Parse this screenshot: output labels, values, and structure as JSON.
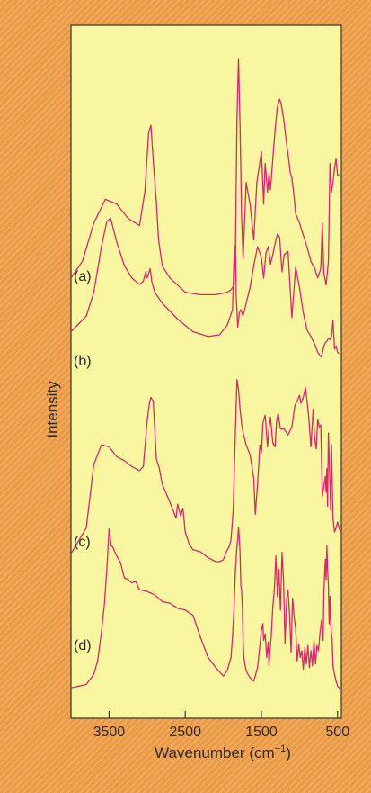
{
  "chart_data": {
    "type": "line",
    "title": "",
    "xlabel": "Wavenumber (cm",
    "xlabel_superscript": "−1",
    "xlabel_suffix": ")",
    "ylabel": "Intensity",
    "x_reversed": true,
    "xlim": [
      4000,
      450
    ],
    "x_ticks": [
      3500,
      2500,
      1500,
      500
    ],
    "x_tick_labels": [
      "3500",
      "2500",
      "1500",
      "500"
    ],
    "y_ticks_shown": false,
    "grid": false,
    "legend": "none",
    "colors": {
      "line": "#d9276b",
      "plot_bg": "#f8f6a0",
      "frame": "#333333",
      "page_bg": "#f2a04a"
    },
    "series": [
      {
        "name": "(a)",
        "x": [
          4000,
          3850,
          3700,
          3550,
          3400,
          3250,
          3100,
          3030,
          2980,
          2950,
          2920,
          2880,
          2850,
          2800,
          2700,
          2500,
          2300,
          2100,
          1950,
          1900,
          1860,
          1840,
          1820,
          1800,
          1780,
          1760,
          1740,
          1700,
          1650,
          1600,
          1560,
          1500,
          1470,
          1450,
          1420,
          1400,
          1380,
          1350,
          1320,
          1290,
          1260,
          1240,
          1220,
          1200,
          1180,
          1150,
          1120,
          1100,
          1070,
          1050,
          1000,
          950,
          900,
          850,
          800,
          760,
          720,
          700,
          680,
          650,
          620,
          600,
          580,
          560,
          540,
          520,
          500,
          480
        ],
        "y": [
          0.08,
          0.15,
          0.31,
          0.41,
          0.39,
          0.33,
          0.3,
          0.44,
          0.69,
          0.72,
          0.57,
          0.4,
          0.24,
          0.13,
          0.08,
          0.02,
          0.01,
          0.01,
          0.02,
          0.03,
          0.05,
          0.2,
          0.75,
          1.0,
          0.72,
          0.34,
          0.16,
          0.48,
          0.39,
          0.24,
          0.48,
          0.61,
          0.39,
          0.56,
          0.44,
          0.52,
          0.45,
          0.58,
          0.7,
          0.8,
          0.83,
          0.81,
          0.77,
          0.73,
          0.67,
          0.6,
          0.52,
          0.5,
          0.42,
          0.35,
          0.31,
          0.26,
          0.21,
          0.15,
          0.12,
          0.08,
          0.12,
          0.31,
          0.1,
          0.05,
          0.15,
          0.56,
          0.44,
          0.48,
          0.54,
          0.58,
          0.51,
          0.51
        ]
      },
      {
        "name": "(b)",
        "x": [
          4000,
          3800,
          3700,
          3600,
          3530,
          3480,
          3400,
          3300,
          3200,
          3100,
          3050,
          3020,
          3000,
          2960,
          2940,
          2900,
          2800,
          2600,
          2400,
          2200,
          2050,
          1950,
          1880,
          1860,
          1840,
          1830,
          1810,
          1790,
          1770,
          1740,
          1700,
          1650,
          1600,
          1550,
          1500,
          1470,
          1440,
          1410,
          1380,
          1350,
          1320,
          1290,
          1260,
          1230,
          1200,
          1150,
          1100,
          1050,
          1000,
          950,
          900,
          850,
          800,
          760,
          720,
          700,
          680,
          660,
          640,
          620,
          600,
          580,
          560,
          540,
          520,
          500,
          480
        ],
        "y": [
          0.18,
          0.28,
          0.43,
          0.72,
          0.88,
          0.9,
          0.75,
          0.6,
          0.52,
          0.48,
          0.5,
          0.56,
          0.52,
          0.58,
          0.5,
          0.43,
          0.36,
          0.26,
          0.18,
          0.15,
          0.16,
          0.22,
          0.32,
          0.63,
          0.74,
          0.4,
          0.21,
          0.3,
          0.32,
          0.28,
          0.36,
          0.46,
          0.6,
          0.72,
          0.65,
          0.52,
          0.68,
          0.72,
          0.61,
          0.67,
          0.74,
          0.8,
          0.78,
          0.56,
          0.67,
          0.69,
          0.27,
          0.59,
          0.46,
          0.3,
          0.19,
          0.15,
          0.1,
          0.05,
          0.02,
          0.04,
          0.09,
          0.11,
          0.12,
          0.14,
          0.13,
          0.15,
          0.25,
          0.07,
          0.09,
          0.05,
          0.04
        ]
      },
      {
        "name": "(c)",
        "x": [
          4000,
          3800,
          3700,
          3600,
          3500,
          3400,
          3300,
          3200,
          3100,
          3050,
          3000,
          2970,
          2950,
          2920,
          2880,
          2840,
          2800,
          2700,
          2620,
          2600,
          2560,
          2530,
          2500,
          2450,
          2400,
          2300,
          2200,
          2100,
          2050,
          2000,
          1960,
          1920,
          1900,
          1870,
          1840,
          1820,
          1800,
          1780,
          1760,
          1740,
          1720,
          1700,
          1650,
          1600,
          1580,
          1550,
          1520,
          1500,
          1480,
          1450,
          1420,
          1400,
          1380,
          1350,
          1320,
          1300,
          1280,
          1250,
          1200,
          1150,
          1100,
          1060,
          1030,
          1000,
          980,
          950,
          920,
          900,
          880,
          850,
          820,
          800,
          780,
          760,
          740,
          720,
          700,
          680,
          660,
          650,
          640,
          630,
          620,
          600,
          590,
          580,
          560,
          540,
          520,
          500,
          480,
          460
        ],
        "y": [
          0.09,
          0.22,
          0.54,
          0.64,
          0.63,
          0.58,
          0.56,
          0.53,
          0.51,
          0.53,
          0.76,
          0.85,
          0.88,
          0.86,
          0.57,
          0.52,
          0.44,
          0.35,
          0.27,
          0.34,
          0.28,
          0.32,
          0.2,
          0.14,
          0.11,
          0.1,
          0.07,
          0.05,
          0.05,
          0.06,
          0.1,
          0.13,
          0.16,
          0.31,
          0.72,
          0.97,
          0.92,
          0.82,
          0.75,
          0.7,
          0.67,
          0.64,
          0.59,
          0.47,
          0.29,
          0.44,
          0.64,
          0.6,
          0.75,
          0.79,
          0.63,
          0.73,
          0.78,
          0.65,
          0.63,
          0.76,
          0.8,
          0.72,
          0.72,
          0.69,
          0.73,
          0.84,
          0.86,
          0.89,
          0.85,
          0.88,
          0.93,
          0.86,
          0.79,
          0.63,
          0.82,
          0.67,
          0.62,
          0.77,
          0.73,
          0.74,
          0.38,
          0.43,
          0.48,
          0.4,
          0.52,
          0.33,
          0.7,
          0.44,
          0.31,
          0.64,
          0.27,
          0.2,
          0.22,
          0.25,
          0.22,
          0.2
        ]
      },
      {
        "name": "(d)",
        "x": [
          4000,
          3800,
          3700,
          3650,
          3600,
          3560,
          3530,
          3500,
          3470,
          3450,
          3400,
          3350,
          3300,
          3250,
          3200,
          3150,
          3100,
          3000,
          2900,
          2800,
          2700,
          2600,
          2500,
          2400,
          2300,
          2200,
          2100,
          2000,
          1950,
          1900,
          1880,
          1860,
          1840,
          1820,
          1810,
          1800,
          1790,
          1780,
          1770,
          1760,
          1750,
          1740,
          1730,
          1720,
          1700,
          1650,
          1600,
          1550,
          1500,
          1480,
          1470,
          1450,
          1430,
          1410,
          1400,
          1390,
          1370,
          1350,
          1330,
          1310,
          1290,
          1270,
          1250,
          1230,
          1210,
          1190,
          1170,
          1150,
          1130,
          1110,
          1090,
          1070,
          1050,
          1030,
          1010,
          990,
          970,
          950,
          930,
          910,
          890,
          870,
          850,
          830,
          810,
          790,
          770,
          750,
          730,
          710,
          690,
          680,
          670,
          660,
          650,
          640,
          630,
          620,
          610,
          600,
          590,
          580,
          570,
          560,
          540,
          520,
          500,
          480,
          460
        ],
        "y": [
          0.02,
          0.04,
          0.1,
          0.18,
          0.35,
          0.52,
          0.72,
          0.96,
          0.86,
          0.85,
          0.8,
          0.76,
          0.67,
          0.66,
          0.64,
          0.65,
          0.6,
          0.59,
          0.57,
          0.53,
          0.52,
          0.49,
          0.48,
          0.45,
          0.32,
          0.2,
          0.14,
          0.09,
          0.12,
          0.2,
          0.32,
          0.48,
          0.72,
          0.86,
          0.9,
          0.97,
          0.9,
          0.82,
          0.62,
          0.6,
          0.49,
          0.3,
          0.2,
          0.17,
          0.12,
          0.08,
          0.06,
          0.14,
          0.36,
          0.4,
          0.3,
          0.34,
          0.2,
          0.29,
          0.15,
          0.22,
          0.33,
          0.5,
          0.6,
          0.8,
          0.56,
          0.72,
          0.48,
          0.82,
          0.66,
          0.28,
          0.54,
          0.6,
          0.46,
          0.23,
          0.55,
          0.44,
          0.37,
          0.18,
          0.28,
          0.2,
          0.24,
          0.13,
          0.26,
          0.16,
          0.27,
          0.14,
          0.24,
          0.15,
          0.3,
          0.16,
          0.27,
          0.24,
          0.35,
          0.42,
          0.3,
          0.58,
          0.68,
          0.78,
          0.66,
          0.86,
          0.72,
          0.62,
          0.4,
          0.56,
          0.4,
          0.34,
          0.3,
          0.15,
          0.1,
          0.06,
          0.03,
          0.02,
          0.01
        ]
      }
    ]
  }
}
